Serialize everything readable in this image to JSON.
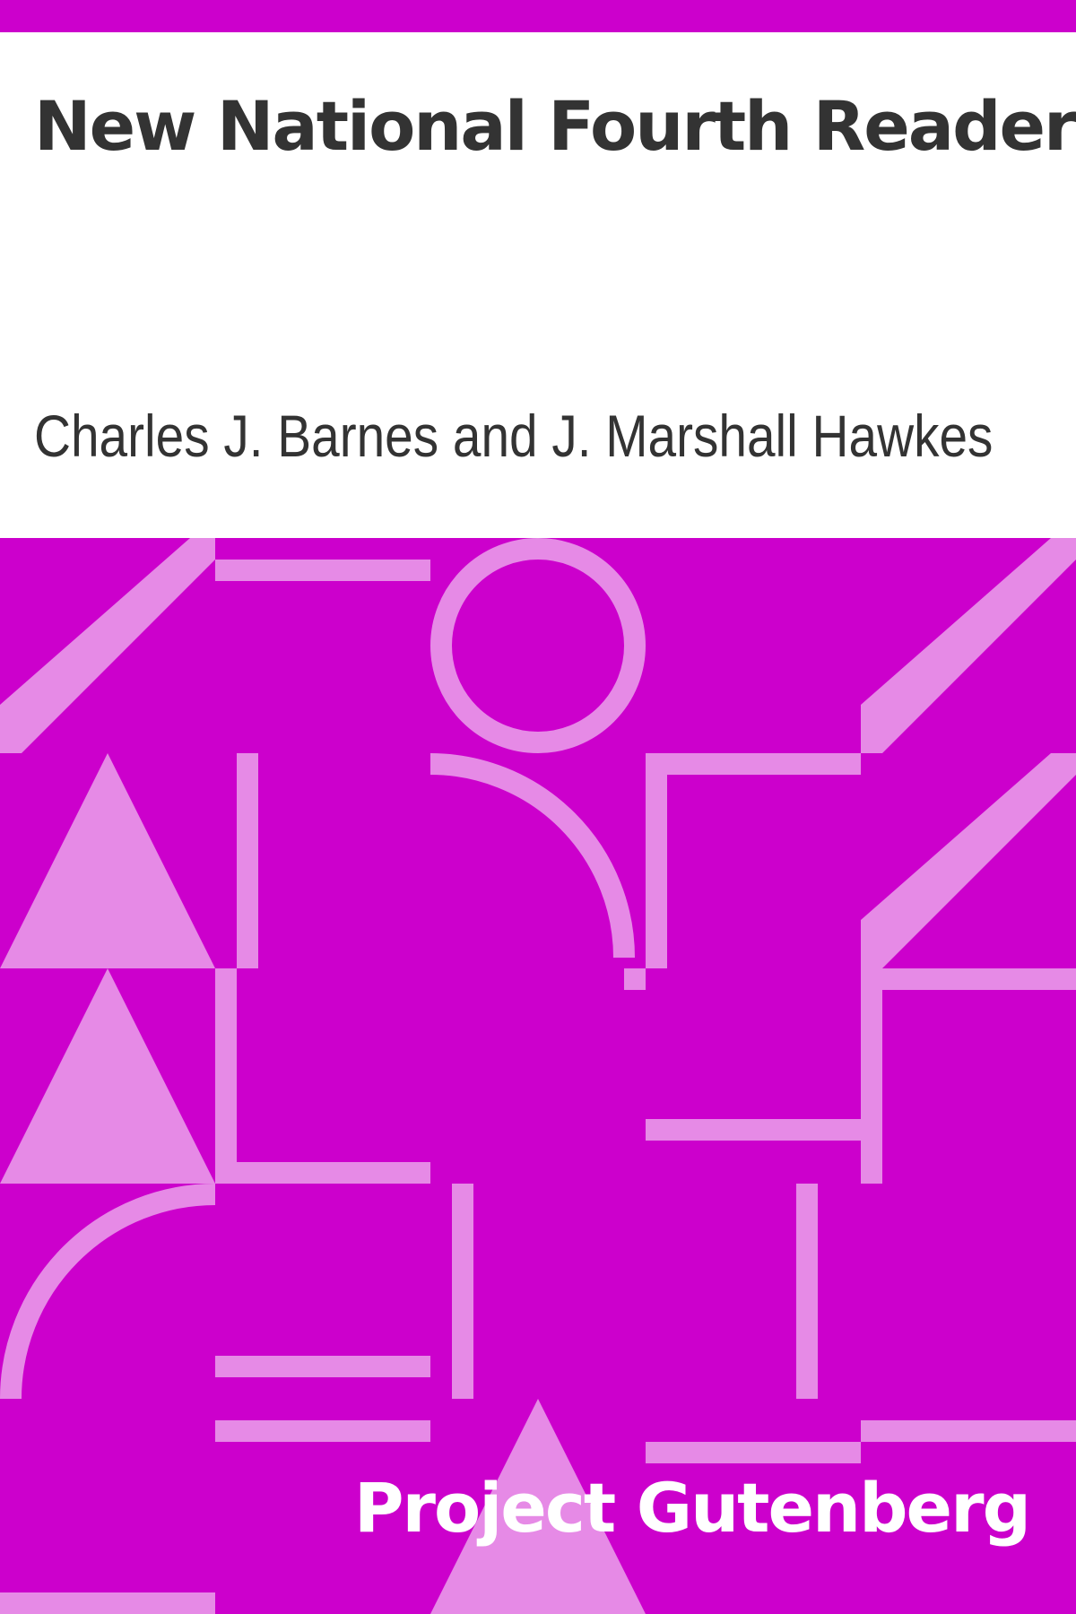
{
  "cover": {
    "title": "New National Fourth Reader",
    "author": "Charles J. Barnes and J. Marshall Hawkes",
    "publisher": "Project Gutenberg"
  },
  "colors": {
    "background": "#CC00CC",
    "pattern": "#E68AE6",
    "text": "#333333",
    "publisher_text": "#FFFFFF",
    "page": "#FFFFFF"
  }
}
